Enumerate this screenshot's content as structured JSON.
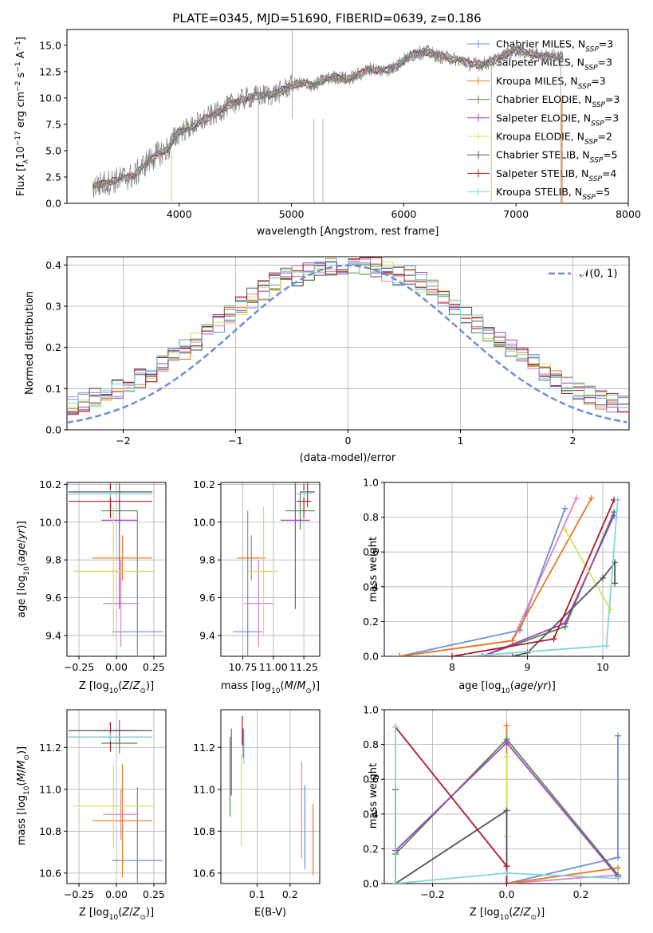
{
  "colors": {
    "Chabrier MILES": "#6b8fd6",
    "Salpeter MILES": "#e87fbf",
    "Kroupa MILES": "#e8791e",
    "Chabrier ELODIE": "#4e8a4e",
    "Salpeter ELODIE": "#a13fc2",
    "Kroupa ELODIE": "#d4e05a",
    "Chabrier STELIB": "#555555",
    "Salpeter STELIB": "#b0182a",
    "Kroupa STELIB": "#7fd6da"
  },
  "chart_data": [
    {
      "id": "spectrum",
      "type": "line",
      "title": "PLATE=0345, MJD=51690, FIBERID=0639, z=0.186",
      "xlabel": "wavelength [Angstrom, rest frame]",
      "ylabel": "Flux [f_λ 10^-17 erg cm^-2 s^-1 A^-1]",
      "xlim": [
        3000,
        8000
      ],
      "ylim": [
        0,
        16.5
      ],
      "xticks": [
        "4000",
        "5000",
        "6000",
        "7000",
        "8000"
      ],
      "yticks": [
        "0.0",
        "2.5",
        "5.0",
        "7.5",
        "10.0",
        "12.5",
        "15.0"
      ],
      "legend_position": "right",
      "legend": [
        {
          "name": "Chabrier MILES, N",
          "sub": "SSP",
          "tail": "=3"
        },
        {
          "name": "Salpeter MILES, N",
          "sub": "SSP",
          "tail": "=3"
        },
        {
          "name": "Kroupa MILES, N",
          "sub": "SSP",
          "tail": "=3"
        },
        {
          "name": "Chabrier ELODIE, N",
          "sub": "SSP",
          "tail": "=3"
        },
        {
          "name": "Salpeter ELODIE, N",
          "sub": "SSP",
          "tail": "=3"
        },
        {
          "name": "Kroupa ELODIE, N",
          "sub": "SSP",
          "tail": "=2"
        },
        {
          "name": "Chabrier STELIB, N",
          "sub": "SSP",
          "tail": "=5"
        },
        {
          "name": "Salpeter STELIB, N",
          "sub": "SSP",
          "tail": "=4"
        },
        {
          "name": "Kroupa STELIB, N",
          "sub": "SSP",
          "tail": "=5"
        }
      ],
      "continuum": {
        "x": [
          3230,
          3500,
          3600,
          3700,
          3800,
          3900,
          4000,
          4100,
          4200,
          4300,
          4400,
          4500,
          4600,
          4700,
          4800,
          4900,
          5000,
          5100,
          5200,
          5300,
          5400,
          5500,
          5600,
          5700,
          5800,
          5900,
          6000,
          6100,
          6200,
          6300,
          6400,
          6500,
          6600,
          6700,
          6800,
          7000,
          7200,
          7400
        ],
        "y": [
          1.6,
          2.4,
          2.6,
          3.8,
          4.6,
          5.2,
          6.8,
          7.2,
          7.8,
          8.4,
          9.0,
          9.6,
          10.0,
          10.2,
          10.3,
          10.6,
          11.2,
          11.4,
          11.2,
          11.8,
          12.0,
          11.8,
          12.2,
          12.8,
          12.6,
          12.8,
          13.6,
          14.2,
          14.4,
          14.0,
          13.8,
          13.6,
          13.2,
          13.2,
          13.5,
          14.6,
          14.0,
          13.9
        ]
      }
    },
    {
      "id": "residuals",
      "type": "line",
      "xlabel": "(data-model)/error",
      "ylabel": "Normed distribution",
      "xlim": [
        -2.5,
        2.5
      ],
      "ylim": [
        0,
        0.42
      ],
      "xticks": [
        "−2",
        "−1",
        "0",
        "1",
        "2"
      ],
      "yticks": [
        "0.0",
        "0.1",
        "0.2",
        "0.3",
        "0.4"
      ],
      "legend_label": "𝒩(0, 1)",
      "legend_position": "top-right",
      "bin_width": 0.1
    },
    {
      "id": "age-vs-Z",
      "type": "scatter",
      "xlabel": "Z [log10(Z/Z⊙)]",
      "ylabel": "age  [log10(age/yr)]",
      "xlim": [
        -0.33,
        0.33
      ],
      "ylim": [
        9.29,
        10.21
      ],
      "xticks": [
        "−0.25",
        "0.00",
        "0.25"
      ],
      "yticks": [
        "9.4",
        "9.6",
        "9.8",
        "10.0",
        "10.2"
      ],
      "points": [
        {
          "model": "Chabrier MILES",
          "x": 0.14,
          "xerr": 0.17,
          "y": 9.42,
          "yerr": 0.64
        },
        {
          "model": "Salpeter MILES",
          "x": 0.03,
          "xerr": 0.12,
          "y": 9.57,
          "yerr": 0.23
        },
        {
          "model": "Kroupa MILES",
          "x": 0.04,
          "xerr": 0.2,
          "y": 9.81,
          "yerr": 0.12
        },
        {
          "model": "Chabrier ELODIE",
          "x": 0.02,
          "xerr": 0.12,
          "y": 10.06,
          "yerr": 0.1
        },
        {
          "model": "Salpeter ELODIE",
          "x": 0.02,
          "xerr": 0.12,
          "y": 10.01,
          "yerr": 0.47
        },
        {
          "model": "Kroupa ELODIE",
          "x": -0.02,
          "xerr": 0.27,
          "y": 9.74,
          "yerr": 0.34
        },
        {
          "model": "Chabrier STELIB",
          "x": -0.04,
          "xerr": 0.28,
          "y": 10.16,
          "yerr": 0.08
        },
        {
          "model": "Salpeter STELIB",
          "x": -0.04,
          "xerr": 0.28,
          "y": 10.11,
          "yerr": 0.09
        },
        {
          "model": "Kroupa STELIB",
          "x": -0.04,
          "xerr": 0.28,
          "y": 10.15,
          "yerr": 0.02
        }
      ]
    },
    {
      "id": "age-vs-mass",
      "type": "scatter",
      "xlabel": "mass [log10(M/M⊙)]",
      "ylabel": "",
      "xlim": [
        10.57,
        11.38
      ],
      "ylim": [
        9.29,
        10.21
      ],
      "xticks": [
        "10.75",
        "11.00",
        "11.25"
      ],
      "yticks": [
        "9.4",
        "9.6",
        "9.8",
        "10.0",
        "10.2"
      ],
      "points": [
        {
          "model": "Chabrier MILES",
          "x": 10.79,
          "xerr": 0.12,
          "y": 9.42,
          "yerr": 0.64
        },
        {
          "model": "Salpeter MILES",
          "x": 10.88,
          "xerr": 0.12,
          "y": 9.57,
          "yerr": 0.23
        },
        {
          "model": "Kroupa MILES",
          "x": 10.82,
          "xerr": 0.12,
          "y": 9.81,
          "yerr": 0.12
        },
        {
          "model": "Chabrier ELODIE",
          "x": 11.22,
          "xerr": 0.12,
          "y": 10.06,
          "yerr": 0.1
        },
        {
          "model": "Salpeter ELODIE",
          "x": 11.18,
          "xerr": 0.12,
          "y": 10.01,
          "yerr": 0.47
        },
        {
          "model": "Kroupa ELODIE",
          "x": 10.92,
          "xerr": 0.12,
          "y": 9.74,
          "yerr": 0.34
        },
        {
          "model": "Chabrier STELIB",
          "x": 11.28,
          "xerr": 0.06,
          "y": 10.16,
          "yerr": 0.08
        },
        {
          "model": "Salpeter STELIB",
          "x": 11.25,
          "xerr": 0.06,
          "y": 10.11,
          "yerr": 0.09
        },
        {
          "model": "Kroupa STELIB",
          "x": 11.25,
          "xerr": 0.06,
          "y": 10.15,
          "yerr": 0.02
        }
      ]
    },
    {
      "id": "weight-vs-age",
      "type": "line",
      "xlabel": "age  [log10(age/yr)]",
      "ylabel": "mass weight",
      "xlim": [
        7.1,
        10.35
      ],
      "ylim": [
        0,
        1.0
      ],
      "xticks": [
        "8",
        "9",
        "10"
      ],
      "yticks": [
        "0.0",
        "0.2",
        "0.4",
        "0.6",
        "0.8",
        "1.0"
      ],
      "series": [
        {
          "model": "Chabrier MILES",
          "x": [
            7.3,
            8.9,
            9.5
          ],
          "y": [
            0.0,
            0.15,
            0.85
          ]
        },
        {
          "model": "Salpeter MILES",
          "x": [
            7.3,
            8.8,
            9.65
          ],
          "y": [
            0.0,
            0.09,
            0.91
          ]
        },
        {
          "model": "Kroupa MILES",
          "x": [
            7.3,
            8.8,
            9.85
          ],
          "y": [
            0.0,
            0.09,
            0.91
          ]
        },
        {
          "model": "Chabrier ELODIE",
          "x": [
            8.4,
            9.5,
            10.15
          ],
          "y": [
            0.0,
            0.17,
            0.83
          ]
        },
        {
          "model": "Salpeter ELODIE",
          "x": [
            8.4,
            9.5,
            10.15
          ],
          "y": [
            0.0,
            0.19,
            0.81
          ]
        },
        {
          "model": "Kroupa ELODIE",
          "x": [
            9.5,
            10.1
          ],
          "y": [
            0.73,
            0.27
          ]
        },
        {
          "model": "Chabrier STELIB",
          "x": [
            8.8,
            9.0,
            10.0,
            10.16,
            10.16
          ],
          "y": [
            0.0,
            0.02,
            0.45,
            0.54,
            0.42
          ]
        },
        {
          "model": "Salpeter STELIB",
          "x": [
            8.0,
            9.35,
            10.15
          ],
          "y": [
            0.0,
            0.1,
            0.9
          ]
        },
        {
          "model": "Kroupa STELIB",
          "x": [
            8.2,
            10.05,
            10.2
          ],
          "y": [
            0.0,
            0.06,
            0.9
          ]
        }
      ]
    },
    {
      "id": "mass-vs-Z",
      "type": "scatter",
      "xlabel": "Z [log10(Z/Z⊙)]",
      "ylabel": "mass [log10(M/M⊙)]",
      "xlim": [
        -0.33,
        0.33
      ],
      "ylim": [
        10.55,
        11.38
      ],
      "xticks": [
        "−0.25",
        "0.00",
        "0.25"
      ],
      "yticks": [
        "10.6",
        "10.8",
        "11.0",
        "11.2"
      ],
      "points": [
        {
          "model": "Chabrier MILES",
          "x": 0.14,
          "xerr": 0.17,
          "y": 10.66,
          "yerr": 0.35
        },
        {
          "model": "Salpeter MILES",
          "x": 0.03,
          "xerr": 0.12,
          "y": 10.88,
          "yerr": 0.12
        },
        {
          "model": "Kroupa MILES",
          "x": 0.04,
          "xerr": 0.2,
          "y": 10.85,
          "yerr": 0.27
        },
        {
          "model": "Chabrier ELODIE",
          "x": 0.02,
          "xerr": 0.12,
          "y": 11.22,
          "yerr": 0.05
        },
        {
          "model": "Salpeter ELODIE",
          "x": 0.02,
          "xerr": 0.12,
          "y": 11.28,
          "yerr": 0.05
        },
        {
          "model": "Kroupa ELODIE",
          "x": -0.02,
          "xerr": 0.27,
          "y": 10.92,
          "yerr": 0.2
        },
        {
          "model": "Chabrier STELIB",
          "x": -0.04,
          "xerr": 0.28,
          "y": 11.28,
          "yerr": 0.04
        },
        {
          "model": "Salpeter STELIB",
          "x": -0.04,
          "xerr": 0.28,
          "y": 11.25,
          "yerr": 0.07
        },
        {
          "model": "Kroupa STELIB",
          "x": -0.04,
          "xerr": 0.28,
          "y": 11.25,
          "yerr": 0.02
        }
      ]
    },
    {
      "id": "mass-vs-EBV",
      "type": "scatter",
      "xlabel": "E(B-V)",
      "ylabel": "",
      "xlim": [
        -0.01,
        0.29
      ],
      "ylim": [
        10.55,
        11.38
      ],
      "xticks": [
        "0.1",
        "0.2"
      ],
      "yticks": [
        "10.6",
        "10.8",
        "11.0",
        "11.2"
      ],
      "points": [
        {
          "model": "Chabrier MILES",
          "x": 0.245,
          "y": 10.82,
          "yerr": 0.2
        },
        {
          "model": "Salpeter MILES",
          "x": 0.235,
          "y": 10.9,
          "yerr": 0.23
        },
        {
          "model": "Kroupa MILES",
          "x": 0.27,
          "y": 10.76,
          "yerr": 0.17
        },
        {
          "model": "Chabrier ELODIE",
          "x": 0.018,
          "y": 11.06,
          "yerr": 0.19
        },
        {
          "model": "Salpeter ELODIE",
          "x": 0.022,
          "y": 11.13,
          "yerr": 0.16
        },
        {
          "model": "Kroupa ELODIE",
          "x": 0.052,
          "y": 10.95,
          "yerr": 0.22
        },
        {
          "model": "Chabrier STELIB",
          "x": 0.058,
          "y": 11.22,
          "yerr": 0.07
        },
        {
          "model": "Salpeter STELIB",
          "x": 0.055,
          "y": 11.28,
          "yerr": 0.07
        },
        {
          "model": "Kroupa STELIB",
          "x": 0.06,
          "y": 11.2,
          "yerr": 0.08
        }
      ]
    },
    {
      "id": "weight-vs-Z",
      "type": "line",
      "xlabel": "Z [log10(Z/Z⊙)]",
      "ylabel": "mass weight",
      "xlim": [
        -0.33,
        0.33
      ],
      "ylim": [
        0,
        1.0
      ],
      "xticks": [
        "−0.2",
        "0.0",
        "0.2"
      ],
      "yticks": [
        "0.0",
        "0.2",
        "0.4",
        "0.6",
        "0.8",
        "1.0"
      ],
      "series": [
        {
          "model": "Chabrier MILES",
          "x": [
            0.0,
            0.3,
            0.3
          ],
          "y": [
            0.0,
            0.15,
            0.85
          ]
        },
        {
          "model": "Salpeter MILES",
          "x": [
            0.0,
            0.3
          ],
          "y": [
            0.0,
            0.05
          ]
        },
        {
          "model": "Kroupa MILES",
          "x": [
            0.0,
            0.0,
            0.3
          ],
          "y": [
            0.91,
            0.0,
            0.09
          ]
        },
        {
          "model": "Chabrier ELODIE",
          "x": [
            -0.3,
            0.0,
            0.3
          ],
          "y": [
            0.17,
            0.83,
            0.05
          ]
        },
        {
          "model": "Salpeter ELODIE",
          "x": [
            -0.3,
            0.0,
            0.3
          ],
          "y": [
            0.19,
            0.81,
            0.04
          ]
        },
        {
          "model": "Kroupa ELODIE",
          "x": [
            0.0,
            0.0
          ],
          "y": [
            0.27,
            0.73
          ]
        },
        {
          "model": "Chabrier STELIB",
          "x": [
            -0.3,
            -0.3,
            0.0,
            0.0
          ],
          "y": [
            0.54,
            0.0,
            0.42,
            0.0
          ]
        },
        {
          "model": "Salpeter STELIB",
          "x": [
            -0.3,
            0.0,
            0.0
          ],
          "y": [
            0.9,
            0.1,
            0.0
          ]
        },
        {
          "model": "Kroupa STELIB",
          "x": [
            -0.3,
            -0.3,
            0.0,
            0.3
          ],
          "y": [
            0.9,
            0.0,
            0.06,
            0.03
          ]
        }
      ]
    }
  ]
}
